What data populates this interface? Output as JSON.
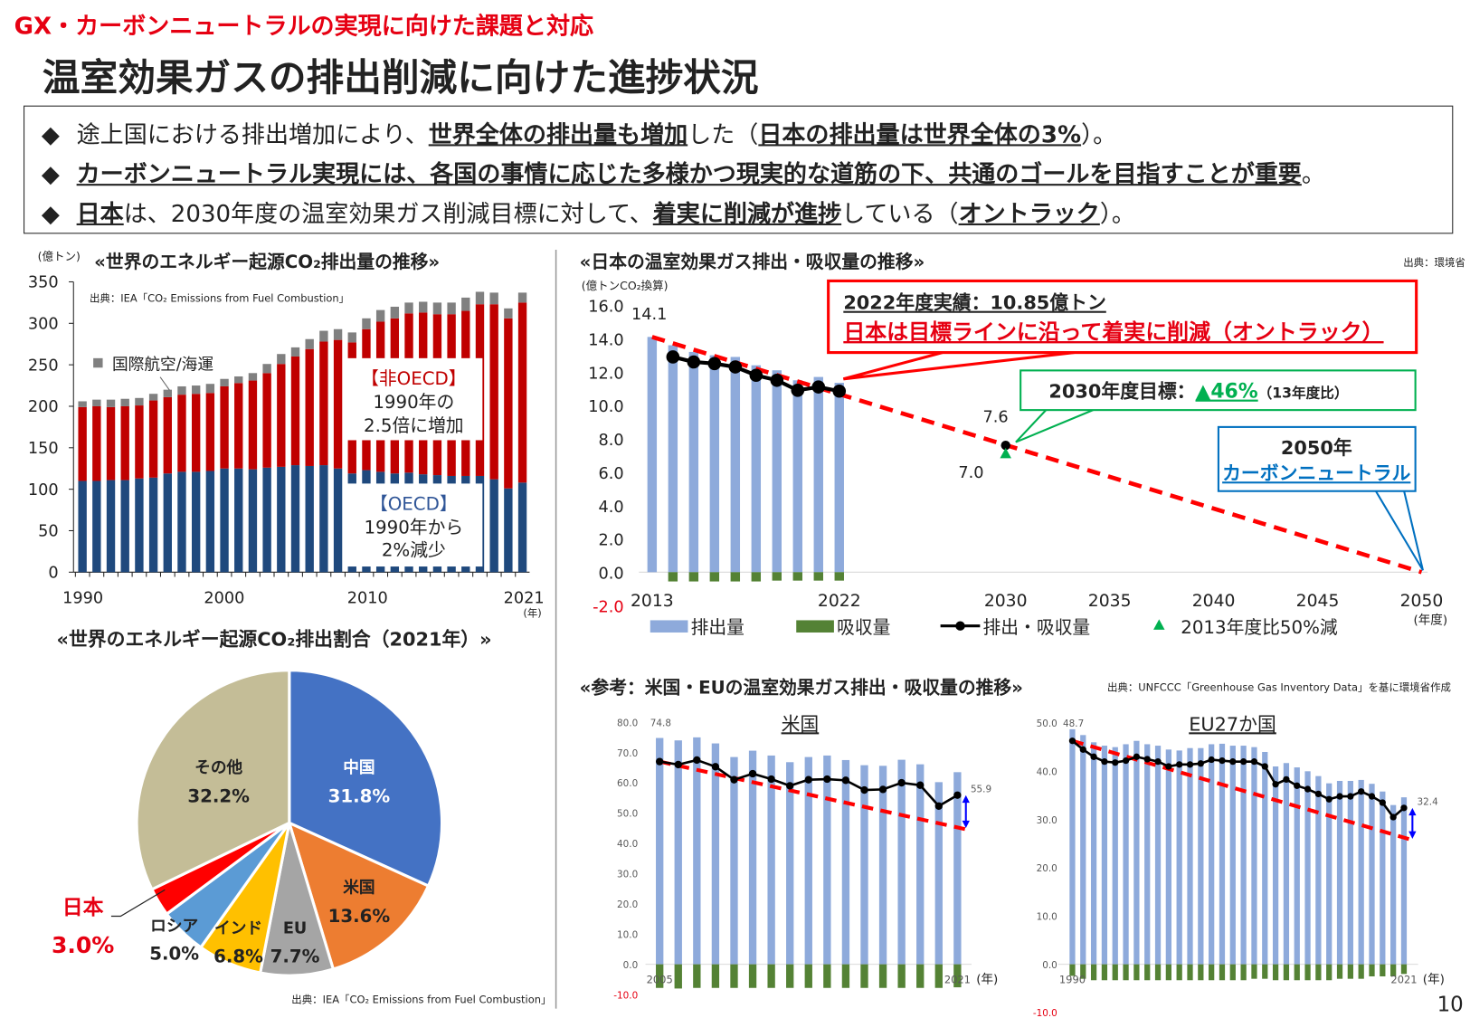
{
  "header": {
    "category": "GX・カーボンニュートラルの実現に向けた課題と対応",
    "title": "温室効果ガスの排出削減に向けた進捗状況"
  },
  "bullets": [
    {
      "marker": "◆",
      "segments": [
        {
          "t": "途上国における排出増加により、",
          "b": false
        },
        {
          "t": "世界全体の排出量も増加",
          "b": true
        },
        {
          "t": "した（",
          "b": false
        },
        {
          "t": "日本の排出量は世界全体の3%",
          "b": true
        },
        {
          "t": "）。",
          "b": false
        }
      ]
    },
    {
      "marker": "◆",
      "segments": [
        {
          "t": "カーボンニュートラル実現には、各国の事情に応じた多様かつ現実的な道筋の下、共通のゴールを目指すことが重要",
          "b": true
        },
        {
          "t": "。",
          "b": false
        }
      ]
    },
    {
      "marker": "◆",
      "segments": [
        {
          "t": "日本",
          "b": true
        },
        {
          "t": "は、2030年度の温室効果ガス削減目標に対して、",
          "b": false
        },
        {
          "t": "着実に削減が進捗",
          "b": true
        },
        {
          "t": "している（",
          "b": false
        },
        {
          "t": "オントラック",
          "b": true
        },
        {
          "t": "）。",
          "b": false
        }
      ]
    }
  ],
  "colors": {
    "oecd": "#1f497d",
    "non_oecd": "#c00000",
    "bunker": "#808080",
    "emission": "#8eaadb",
    "absorption": "#548235",
    "net": "#000000",
    "target": "#ff0000",
    "accent_red": "#e60012",
    "green": "#00b050",
    "blue": "#0070c0"
  },
  "world_chart": {
    "title": "«世界のエネルギー起源CO₂排出量の推移»",
    "unit": "(億トン)",
    "source": "出典：IEA「CO₂ Emissions from Fuel Combustion」",
    "legend_bunker": "国際航空/海運",
    "x_unit": "(年)",
    "non_oecd_box": {
      "head": "【非OECD】",
      "line1": "1990年の",
      "line2": "2.5倍に増加"
    },
    "oecd_box": {
      "head": "【OECD】",
      "line1": "1990年から",
      "line2": "2%減少"
    }
  },
  "share_chart": {
    "title": "«世界のエネルギー起源CO₂排出割合（2021年）»",
    "source": "出典：IEA「CO₂ Emissions from Fuel Combustion」"
  },
  "japan_chart": {
    "title": "«日本の温室効果ガス排出・吸収量の推移»",
    "source": "出典：環境省",
    "unit": "(億トンCO₂換算)",
    "x_unit": "(年度)",
    "label_first": "14.1",
    "label_2030": "7.6",
    "label_50pct": "7.0",
    "callout_actual": {
      "line1": "2022年度実績：10.85億トン",
      "line2": "日本は目標ラインに沿って着実に削減（オントラック）"
    },
    "callout_2030": {
      "prefix": "2030年度目標：",
      "value": "▲46%",
      "suffix": "（13年度比）"
    },
    "callout_2050": {
      "line1": "2050年",
      "line2": "カーボンニュートラル"
    },
    "legend": {
      "emission": "排出量",
      "absorption": "吸収量",
      "net": "排出・吸収量",
      "half": "2013年度比50%減"
    }
  },
  "reference": {
    "title": "«参考：米国・EUの温室効果ガス排出・吸収量の推移»",
    "source": "出典：UNFCCC「Greenhouse Gas Inventory Data」を基に環境省作成",
    "us": {
      "title": "米国",
      "first_label": "74.8",
      "last_label": "55.9",
      "x_unit": "(年)"
    },
    "eu": {
      "title": "EU27か国",
      "first_label": "48.7",
      "last_label": "32.4",
      "x_unit": "(年)"
    }
  },
  "page_number": "10",
  "chart_data": [
    {
      "id": "world",
      "type": "bar",
      "stacked": true,
      "ylabel": "(億トン)",
      "ylim": [
        0,
        350
      ],
      "yticks": [
        0,
        50,
        100,
        150,
        200,
        250,
        300,
        350
      ],
      "x": [
        1990,
        1991,
        1992,
        1993,
        1994,
        1995,
        1996,
        1997,
        1998,
        1999,
        2000,
        2001,
        2002,
        2003,
        2004,
        2005,
        2006,
        2007,
        2008,
        2009,
        2010,
        2011,
        2012,
        2013,
        2014,
        2015,
        2016,
        2017,
        2018,
        2019,
        2020,
        2021
      ],
      "xtick_labels": [
        "1990",
        "2000",
        "2010",
        "2021"
      ],
      "series": [
        {
          "name": "OECD",
          "values": [
            110,
            110,
            111,
            111,
            113,
            114,
            119,
            121,
            121,
            122,
            125,
            125,
            124,
            126,
            127,
            129,
            128,
            129,
            125,
            119,
            123,
            121,
            119,
            120,
            118,
            117,
            116,
            116,
            116,
            112,
            101,
            108
          ]
        },
        {
          "name": "非OECD",
          "values": [
            89,
            90,
            88,
            89,
            88,
            93,
            92,
            93,
            94,
            94,
            99,
            103,
            107,
            114,
            124,
            131,
            141,
            149,
            155,
            158,
            170,
            181,
            187,
            192,
            195,
            194,
            195,
            199,
            207,
            211,
            205,
            217
          ]
        },
        {
          "name": "国際航空/海運",
          "values": [
            7,
            8,
            9,
            9,
            9,
            8,
            9,
            10,
            10,
            11,
            9,
            8,
            9,
            11,
            12,
            11,
            12,
            13,
            13,
            12,
            13,
            14,
            14,
            13,
            13,
            14,
            14,
            16,
            15,
            14,
            12,
            12
          ]
        }
      ]
    },
    {
      "id": "share",
      "type": "pie",
      "title": "2021年",
      "slices": [
        {
          "label": "中国",
          "value": 31.8,
          "text": "31.8%",
          "color": "#4472c4"
        },
        {
          "label": "米国",
          "value": 13.6,
          "text": "13.6%",
          "color": "#ed7d31"
        },
        {
          "label": "EU",
          "value": 7.7,
          "text": "7.7%",
          "color": "#a5a5a5"
        },
        {
          "label": "インド",
          "value": 6.8,
          "text": "6.8%",
          "color": "#ffc000"
        },
        {
          "label": "ロシア",
          "value": 5.0,
          "text": "5.0%",
          "color": "#5b9bd5"
        },
        {
          "label": "日本",
          "value": 3.0,
          "text": "3.0%",
          "color": "#ff0000"
        },
        {
          "label": "その他",
          "value": 32.2,
          "text": "32.2%",
          "color": "#c4bd97"
        }
      ]
    },
    {
      "id": "japan",
      "type": "bar+line",
      "ylim": [
        -2,
        16
      ],
      "yticks": [
        "-2.0",
        "0.0",
        "2.0",
        "4.0",
        "6.0",
        "8.0",
        "10.0",
        "12.0",
        "14.0",
        "16.0"
      ],
      "xtick_labels": [
        "2013",
        "2022",
        "2030",
        "2035",
        "2040",
        "2045",
        "2050"
      ],
      "x": [
        2013,
        2014,
        2015,
        2016,
        2017,
        2018,
        2019,
        2020,
        2021,
        2022
      ],
      "emission": [
        14.1,
        13.6,
        13.2,
        13.0,
        12.9,
        12.4,
        12.1,
        11.5,
        11.7,
        11.35
      ],
      "absorption": [
        null,
        -0.5,
        -0.5,
        -0.5,
        -0.5,
        -0.5,
        -0.45,
        -0.45,
        -0.45,
        -0.45
      ],
      "net": [
        null,
        12.9,
        12.6,
        12.5,
        12.3,
        11.8,
        11.5,
        10.9,
        11.1,
        10.85
      ],
      "target_line": [
        [
          2013,
          14.1
        ],
        [
          2050,
          0
        ]
      ],
      "point_2030": 7.6,
      "half_2030": 7.0
    },
    {
      "id": "us",
      "type": "bar+line",
      "ylim": [
        -10,
        80
      ],
      "yticks": [
        "-10.0",
        "0.0",
        "10.0",
        "20.0",
        "30.0",
        "40.0",
        "50.0",
        "60.0",
        "70.0",
        "80.0"
      ],
      "xtick_labels": [
        "2005",
        "2021"
      ],
      "x": [
        2005,
        2006,
        2007,
        2008,
        2009,
        2010,
        2011,
        2012,
        2013,
        2014,
        2015,
        2016,
        2017,
        2018,
        2019,
        2020,
        2021
      ],
      "emission": [
        74.8,
        74.0,
        75.0,
        73.0,
        68.5,
        70.6,
        69.0,
        66.8,
        68.5,
        69.0,
        67.5,
        65.8,
        65.6,
        67.6,
        66.1,
        60.2,
        63.5
      ],
      "absorption": [
        -7.8,
        -8.0,
        -7.8,
        -7.8,
        -7.8,
        -7.8,
        -7.8,
        -7.8,
        -7.8,
        -7.8,
        -7.8,
        -7.8,
        -7.8,
        -7.8,
        -7.8,
        -7.8,
        -7.6
      ],
      "net": [
        67.0,
        66.0,
        67.5,
        65.3,
        61.0,
        63.0,
        61.2,
        59.0,
        61.0,
        61.2,
        60.8,
        57.6,
        57.8,
        60.0,
        59.2,
        52.3,
        55.9
      ],
      "target_line": [
        [
          2005,
          67.0
        ],
        [
          2021,
          45.0
        ]
      ]
    },
    {
      "id": "eu",
      "type": "bar+line",
      "ylim": [
        -10,
        50
      ],
      "yticks": [
        "-10.0",
        "0.0",
        "10.0",
        "20.0",
        "30.0",
        "40.0",
        "50.0"
      ],
      "xtick_labels": [
        "1990",
        "2021"
      ],
      "x": [
        1990,
        1991,
        1992,
        1993,
        1994,
        1995,
        1996,
        1997,
        1998,
        1999,
        2000,
        2001,
        2002,
        2003,
        2004,
        2005,
        2006,
        2007,
        2008,
        2009,
        2010,
        2011,
        2012,
        2013,
        2014,
        2015,
        2016,
        2017,
        2018,
        2019,
        2020,
        2021
      ],
      "emission": [
        48.7,
        47.5,
        46.0,
        45.3,
        45.0,
        45.6,
        46.3,
        45.6,
        45.3,
        44.5,
        44.3,
        44.8,
        44.8,
        45.6,
        45.7,
        45.3,
        45.3,
        45.0,
        44.0,
        41.0,
        41.7,
        40.8,
        40.0,
        39.0,
        37.5,
        38.0,
        38.0,
        38.2,
        37.4,
        35.8,
        33.0,
        34.6
      ],
      "absorption": [
        -2.4,
        -3.0,
        -3.3,
        -3.3,
        -3.3,
        -3.3,
        -3.3,
        -3.3,
        -3.3,
        -3.3,
        -3.3,
        -3.3,
        -3.3,
        -3.3,
        -3.3,
        -3.3,
        -3.3,
        -3.0,
        -3.0,
        -3.3,
        -3.3,
        -3.3,
        -3.3,
        -3.3,
        -3.3,
        -3.0,
        -3.0,
        -3.0,
        -2.5,
        -2.5,
        -2.5,
        -2.0
      ],
      "net": [
        46.3,
        44.5,
        43.0,
        42.0,
        41.8,
        42.2,
        43.0,
        42.5,
        42.0,
        41.0,
        41.4,
        41.4,
        41.6,
        42.4,
        42.2,
        42.0,
        42.0,
        42.0,
        41.0,
        37.3,
        38.3,
        37.0,
        36.3,
        35.3,
        34.2,
        34.8,
        34.8,
        35.8,
        34.8,
        33.5,
        30.5,
        32.4
      ],
      "target_line": [
        [
          1990,
          46.3
        ],
        [
          2021,
          26.0
        ]
      ]
    }
  ]
}
